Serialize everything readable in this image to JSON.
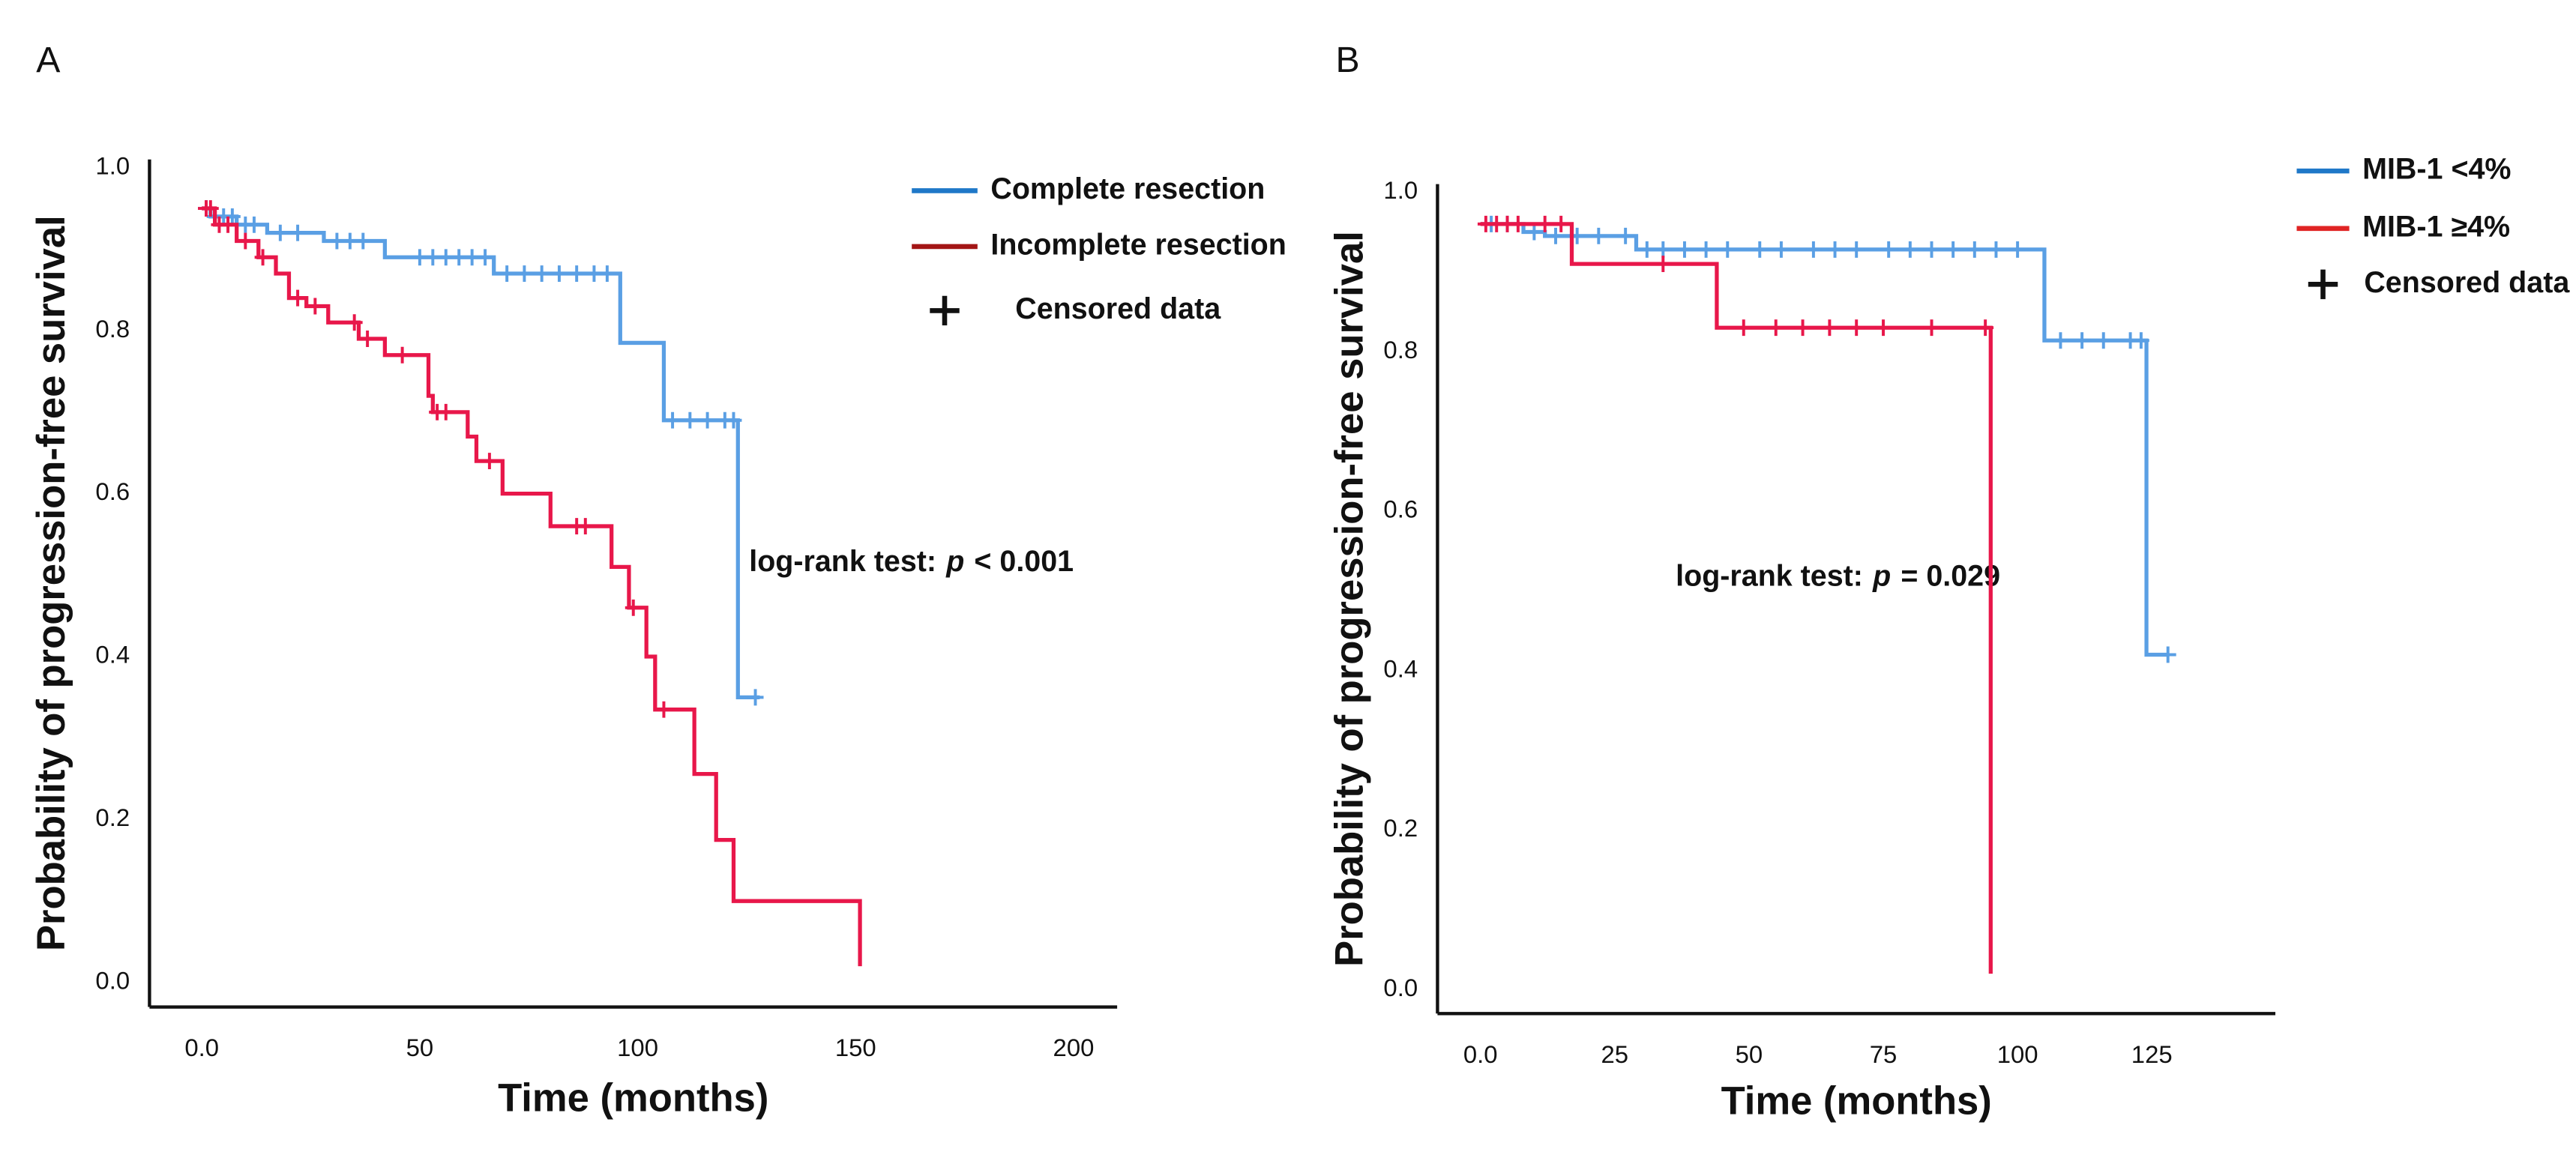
{
  "chart_data": [
    {
      "type": "step",
      "panel": "A",
      "xlabel": "Time (months)",
      "ylabel": "Probability of progression-free survival",
      "annotation": {
        "prefix": "log-rank test:",
        "italic": "p",
        "suffix": "< 0.001"
      },
      "censor_label": "Censored data",
      "xlim": [
        -12,
        210
      ],
      "ylim": [
        -0.03,
        1.01
      ],
      "xticks": [
        {
          "value": 0,
          "label": "0.0"
        },
        50,
        100,
        150,
        200
      ],
      "yticks": [
        {
          "value": 0,
          "label": "0.0"
        },
        0.2,
        0.4,
        0.6,
        0.8,
        {
          "value": 1,
          "label": "1.0"
        }
      ],
      "series": [
        {
          "name": "Complete resection",
          "color": "#5a9fe4",
          "legend_color": "#1f78c8",
          "x": [
            0,
            2,
            8,
            15,
            28,
            42,
            67,
            96,
            106,
            123,
            128
          ],
          "values": [
            0.95,
            0.94,
            0.93,
            0.92,
            0.91,
            0.89,
            0.87,
            0.785,
            0.69,
            0.35,
            0.35
          ],
          "censored": {
            "x": [
              1,
              3,
              5,
              7,
              10,
              12,
              18,
              22,
              31,
              34,
              37,
              50,
              53,
              56,
              59,
              62,
              65,
              70,
              74,
              78,
              82,
              86,
              90,
              93,
              108,
              112,
              116,
              120,
              122,
              127
            ],
            "values": [
              0.95,
              0.94,
              0.94,
              0.94,
              0.93,
              0.93,
              0.92,
              0.92,
              0.91,
              0.91,
              0.91,
              0.89,
              0.89,
              0.89,
              0.89,
              0.89,
              0.89,
              0.87,
              0.87,
              0.87,
              0.87,
              0.87,
              0.87,
              0.87,
              0.69,
              0.69,
              0.69,
              0.69,
              0.69,
              0.35
            ]
          }
        },
        {
          "name": "Incomplete resection",
          "color": "#e8174a",
          "legend_color": "#a31515",
          "x": [
            0,
            3,
            8,
            13,
            17,
            20,
            24,
            29,
            36,
            42,
            52,
            53,
            61,
            63,
            69,
            80,
            94,
            98,
            102,
            104,
            113,
            118,
            122,
            151
          ],
          "values": [
            0.95,
            0.93,
            0.91,
            0.89,
            0.87,
            0.84,
            0.83,
            0.81,
            0.79,
            0.77,
            0.72,
            0.7,
            0.67,
            0.64,
            0.6,
            0.56,
            0.51,
            0.46,
            0.4,
            0.335,
            0.256,
            0.175,
            0.1,
            0.02
          ],
          "censored": {
            "x": [
              1,
              2,
              4,
              6,
              10,
              14,
              22,
              26,
              35,
              38,
              46,
              54,
              56,
              66,
              86,
              88,
              99,
              106
            ],
            "values": [
              0.95,
              0.95,
              0.93,
              0.93,
              0.91,
              0.89,
              0.84,
              0.83,
              0.81,
              0.79,
              0.77,
              0.7,
              0.7,
              0.64,
              0.56,
              0.56,
              0.46,
              0.335
            ]
          }
        }
      ]
    },
    {
      "type": "step",
      "panel": "B",
      "xlabel": "Time (months)",
      "ylabel": "Probability of progression-free survival",
      "annotation": {
        "prefix": "log-rank test:",
        "italic": "p",
        "suffix": "= 0.029"
      },
      "censor_label": "Censored data",
      "xlim": [
        -8,
        148
      ],
      "ylim": [
        -0.03,
        1.01
      ],
      "xticks": [
        {
          "value": 0,
          "label": "0.0"
        },
        25,
        50,
        75,
        100,
        125
      ],
      "yticks": [
        {
          "value": 0,
          "label": "0.0"
        },
        0.2,
        0.4,
        0.6,
        0.8,
        {
          "value": 1,
          "label": "1.0"
        }
      ],
      "series": [
        {
          "name": "MIB-1 <4%",
          "color": "#5a9fe4",
          "legend_color": "#1f78c8",
          "x": [
            0,
            8,
            12,
            29,
            105,
            124,
            128
          ],
          "values": [
            0.96,
            0.95,
            0.945,
            0.928,
            0.814,
            0.42,
            0.42
          ],
          "censored": {
            "x": [
              2,
              5,
              10,
              14,
              18,
              22,
              27,
              31,
              34,
              38,
              42,
              46,
              52,
              56,
              62,
              66,
              70,
              76,
              80,
              84,
              88,
              92,
              96,
              100,
              108,
              112,
              116,
              121,
              123,
              128
            ],
            "values": [
              0.96,
              0.96,
              0.95,
              0.945,
              0.945,
              0.945,
              0.945,
              0.928,
              0.928,
              0.928,
              0.928,
              0.928,
              0.928,
              0.928,
              0.928,
              0.928,
              0.928,
              0.928,
              0.928,
              0.928,
              0.928,
              0.928,
              0.928,
              0.928,
              0.814,
              0.814,
              0.814,
              0.814,
              0.814,
              0.42
            ]
          }
        },
        {
          "name": "MIB-1 ≥4%",
          "color": "#e8174a",
          "legend_color": "#e02424",
          "x": [
            0,
            17,
            44,
            95
          ],
          "values": [
            0.96,
            0.91,
            0.83,
            0.02
          ],
          "censored": {
            "x": [
              1,
              3,
              5,
              7,
              12,
              15,
              34,
              49,
              55,
              60,
              65,
              70,
              75,
              84,
              94
            ],
            "values": [
              0.96,
              0.96,
              0.96,
              0.96,
              0.96,
              0.96,
              0.91,
              0.83,
              0.83,
              0.83,
              0.83,
              0.83,
              0.83,
              0.83,
              0.83
            ]
          }
        }
      ]
    }
  ]
}
